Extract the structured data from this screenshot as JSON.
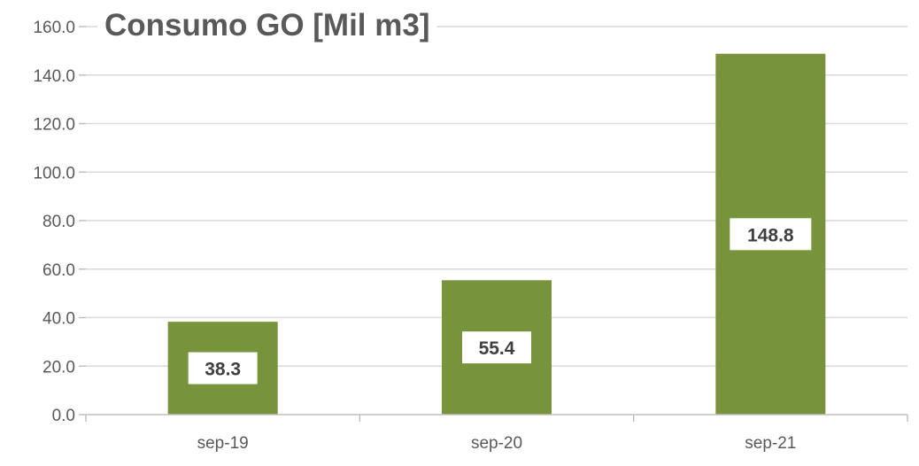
{
  "chart_data": {
    "type": "bar",
    "title": "Consumo GO [Mil m3]",
    "categories": [
      "sep-19",
      "sep-20",
      "sep-21"
    ],
    "values": [
      38.3,
      55.4,
      148.8
    ],
    "value_labels": [
      "38.3",
      "55.4",
      "148.8"
    ],
    "y_ticks": [
      "0.0",
      "20.0",
      "40.0",
      "60.0",
      "80.0",
      "100.0",
      "120.0",
      "140.0",
      "160.0"
    ],
    "ylim": [
      0,
      160
    ],
    "xlabel": "",
    "ylabel": "",
    "grid": true,
    "legend": "none",
    "bar_color": "#77933c",
    "label_box_color": "#ffffff"
  }
}
